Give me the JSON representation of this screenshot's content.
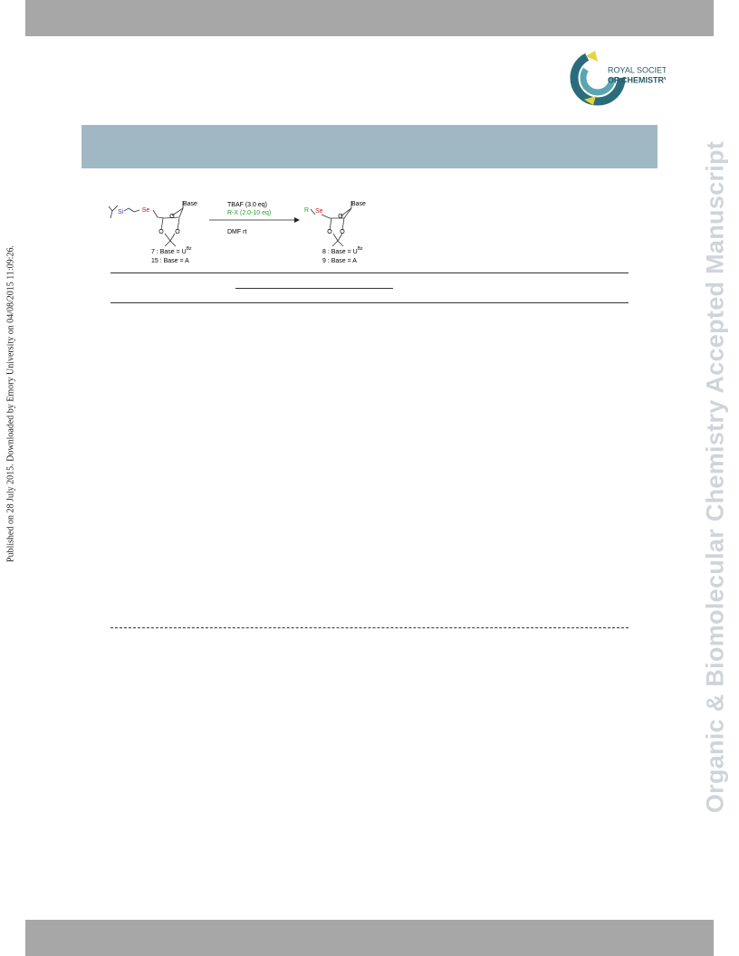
{
  "watermark": {
    "left": "Published on 28 July 2015. Downloaded by Emory University on 04/08/2015 11:09:26.",
    "right": "Organic & Biomolecular Chemistry Accepted Manuscript"
  },
  "logo": {
    "line1": "ROYAL SOCIETY",
    "line2": "OF CHEMISTRY"
  },
  "scheme": {
    "reagents": [
      "TBAF (3.0 eq)",
      "R-X (2.0-10 eq)"
    ],
    "conditions": "DMF rt",
    "starting_material": {
      "silicon": "Si",
      "selenium": "Se",
      "ring_oxygen": "O",
      "acetal_oxygens": [
        "O",
        "O"
      ],
      "base": "Base",
      "compounds": [
        {
          "text": "7 : Base = U",
          "sup": "Bz"
        },
        {
          "text": "15 : Base = A"
        }
      ]
    },
    "product": {
      "group": "R",
      "selenium": "Se",
      "ring_oxygen": "O",
      "acetal_oxygens": [
        "O",
        "O"
      ],
      "base": "Base",
      "compounds": [
        {
          "text": "8 : Base = U",
          "sup": "Bz"
        },
        {
          "text": "9 : Base = A"
        }
      ]
    }
  }
}
